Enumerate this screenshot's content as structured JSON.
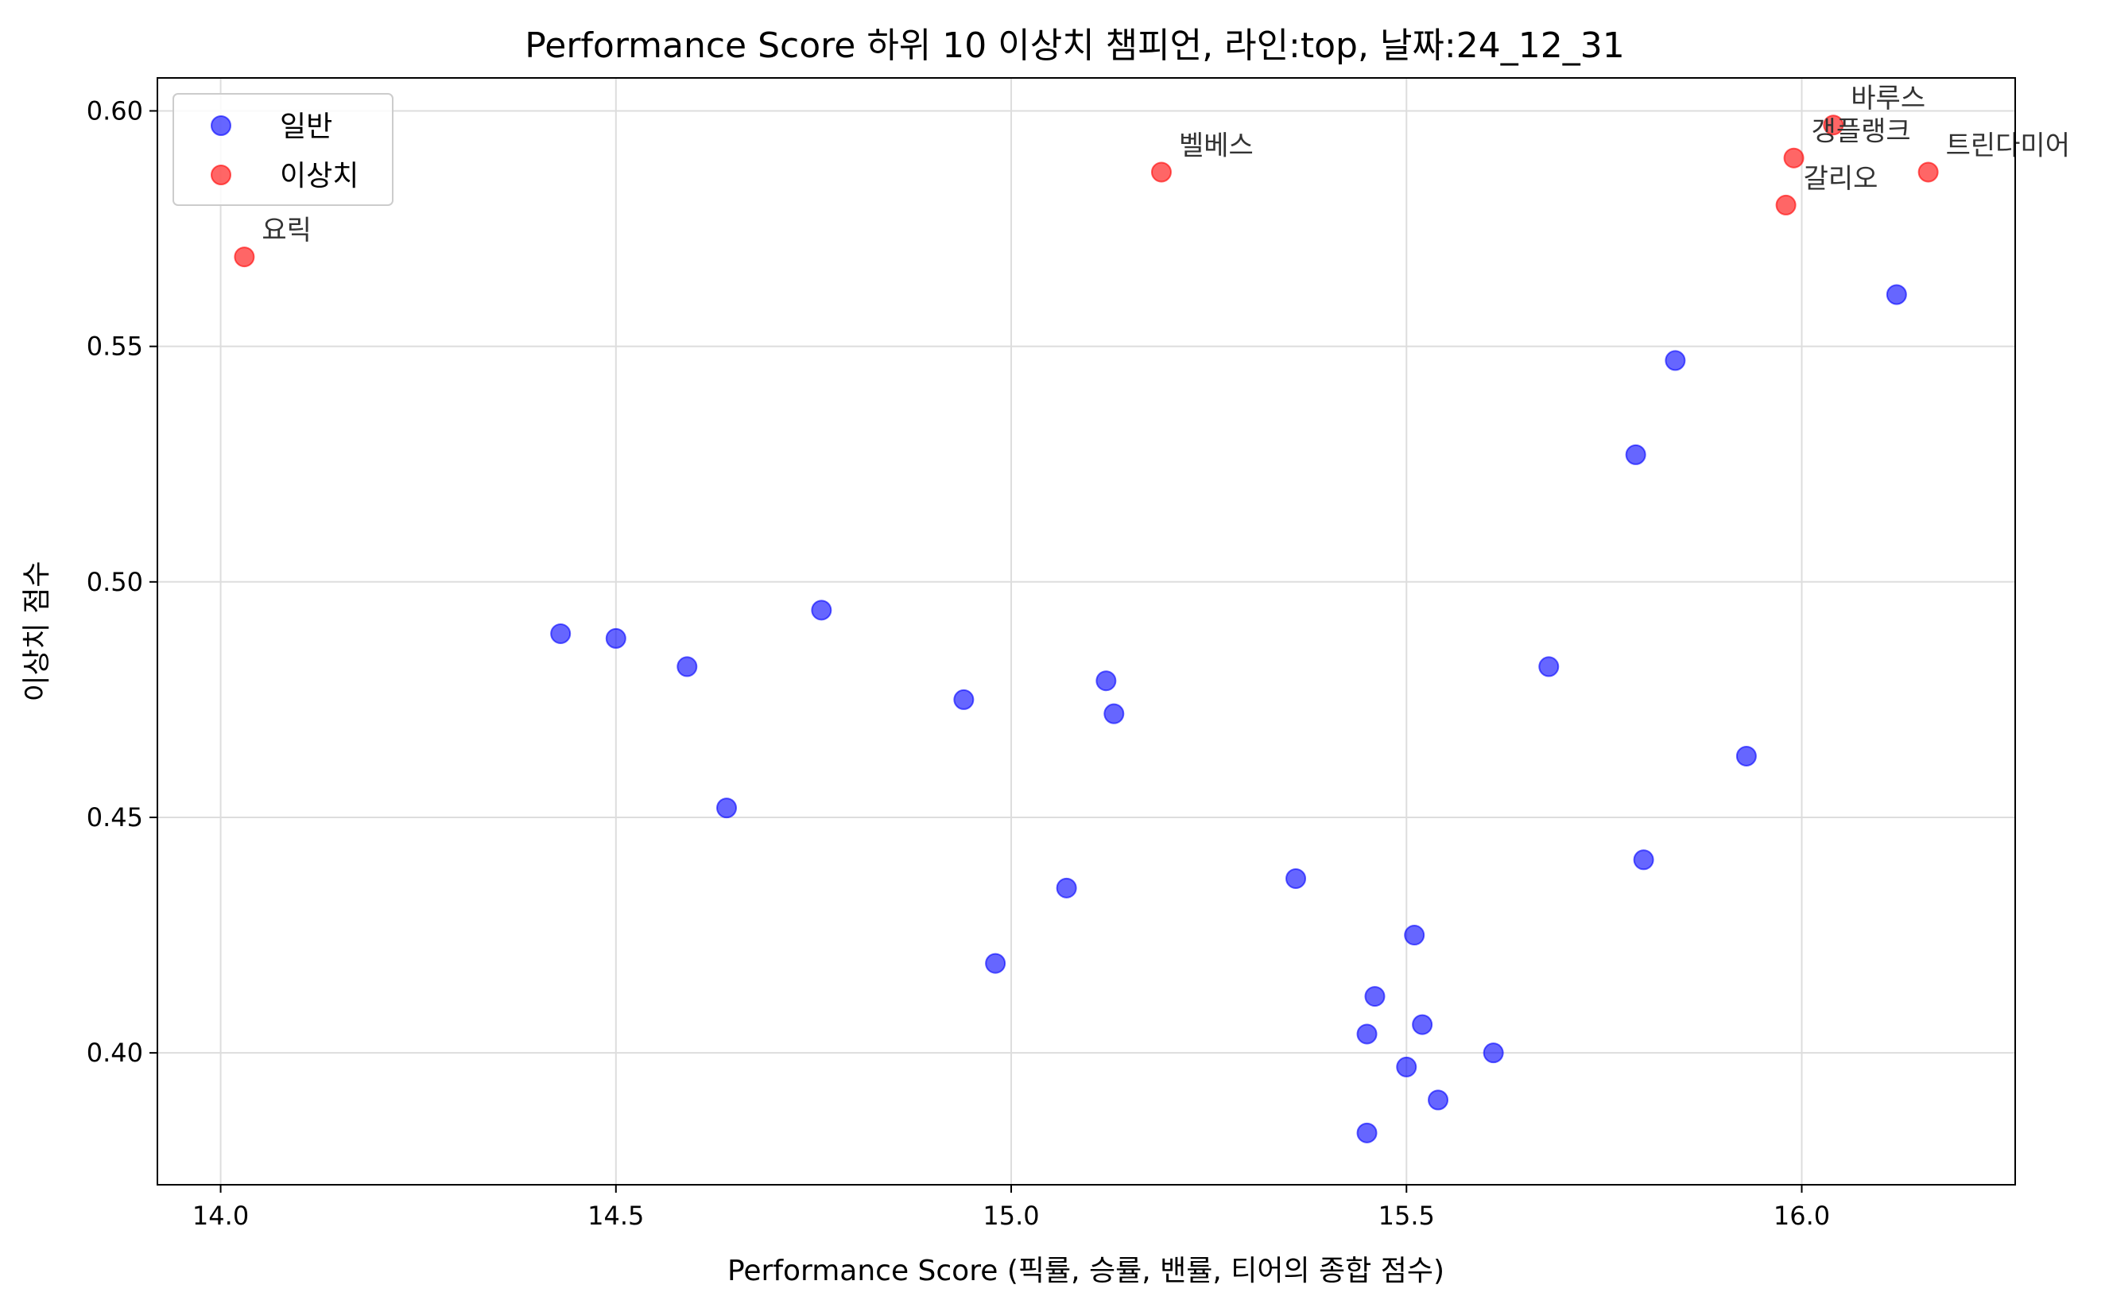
{
  "chart_data": {
    "type": "scatter",
    "title": "Performance Score 하위 10 이상치 챔피언, 라인:top, 날짜:24_12_31",
    "xlabel": "Performance Score (픽률, 승률, 밴률, 티어의 종합 점수)",
    "ylabel": "이상치 점수",
    "xlim": [
      13.92,
      16.27
    ],
    "ylim": [
      0.372,
      0.607
    ],
    "xticks": [
      14.0,
      14.5,
      15.0,
      15.5,
      16.0
    ],
    "xtick_labels": [
      "14.0",
      "14.5",
      "15.0",
      "15.5",
      "16.0"
    ],
    "yticks": [
      0.4,
      0.45,
      0.5,
      0.55,
      0.6
    ],
    "ytick_labels": [
      "0.40",
      "0.45",
      "0.50",
      "0.55",
      "0.60"
    ],
    "grid": true,
    "legend_position": "top-left",
    "series": [
      {
        "name": "일반",
        "color": "#0000ff",
        "points": [
          {
            "x": 14.43,
            "y": 0.489
          },
          {
            "x": 14.5,
            "y": 0.488
          },
          {
            "x": 14.59,
            "y": 0.482
          },
          {
            "x": 14.64,
            "y": 0.452
          },
          {
            "x": 14.76,
            "y": 0.494
          },
          {
            "x": 14.94,
            "y": 0.475
          },
          {
            "x": 14.98,
            "y": 0.419
          },
          {
            "x": 15.07,
            "y": 0.435
          },
          {
            "x": 15.12,
            "y": 0.479
          },
          {
            "x": 15.13,
            "y": 0.472
          },
          {
            "x": 15.36,
            "y": 0.437
          },
          {
            "x": 15.45,
            "y": 0.383
          },
          {
            "x": 15.45,
            "y": 0.404
          },
          {
            "x": 15.46,
            "y": 0.412
          },
          {
            "x": 15.5,
            "y": 0.397
          },
          {
            "x": 15.51,
            "y": 0.425
          },
          {
            "x": 15.52,
            "y": 0.406
          },
          {
            "x": 15.54,
            "y": 0.39
          },
          {
            "x": 15.61,
            "y": 0.4
          },
          {
            "x": 15.68,
            "y": 0.482
          },
          {
            "x": 15.79,
            "y": 0.527
          },
          {
            "x": 15.8,
            "y": 0.441
          },
          {
            "x": 15.84,
            "y": 0.547
          },
          {
            "x": 15.93,
            "y": 0.463
          },
          {
            "x": 16.12,
            "y": 0.561
          }
        ]
      },
      {
        "name": "이상치",
        "color": "#ff0000",
        "points": [
          {
            "x": 14.03,
            "y": 0.569,
            "label": "요릭"
          },
          {
            "x": 15.19,
            "y": 0.587,
            "label": "벨베스"
          },
          {
            "x": 15.98,
            "y": 0.58,
            "label": "갈리오"
          },
          {
            "x": 15.99,
            "y": 0.59,
            "label": "갱플랭크"
          },
          {
            "x": 16.04,
            "y": 0.597,
            "label": "바루스"
          },
          {
            "x": 16.16,
            "y": 0.587,
            "label": "트린다미어"
          }
        ]
      }
    ]
  }
}
